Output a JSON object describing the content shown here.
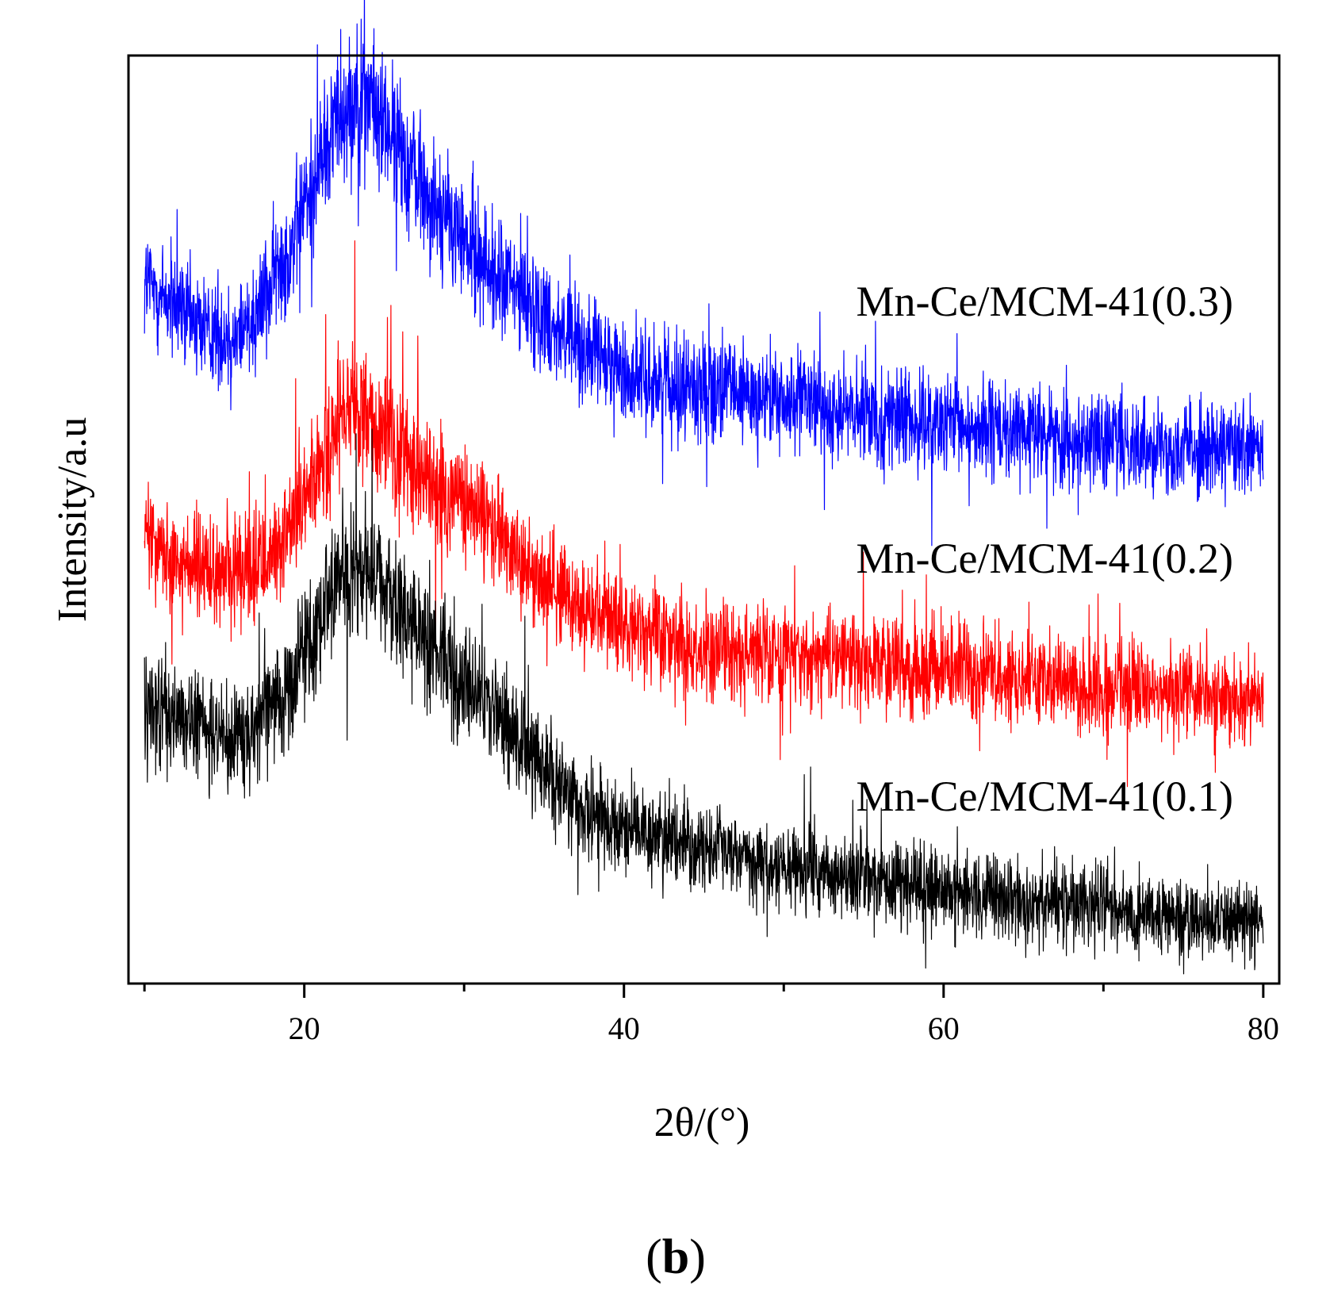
{
  "chart_data": {
    "type": "line",
    "title": "",
    "xlabel": "2θ/(°)",
    "ylabel": "Intensity/a.u",
    "xlim": [
      9,
      81
    ],
    "xticks": [
      20,
      40,
      60,
      80
    ],
    "x_minor_ticks": [
      10,
      30,
      50,
      70
    ],
    "yticks_shown": false,
    "panel_label": {
      "open": "(",
      "letter": "b",
      "close": ")"
    },
    "series": [
      {
        "name": "Mn-Ce/MCM-41(0.3)",
        "color": "#0000ff",
        "noise": 0.34,
        "x": [
          10,
          12,
          14,
          15.5,
          17,
          19,
          21,
          22,
          23,
          24,
          25,
          26,
          27,
          28,
          30,
          32,
          34,
          36,
          38,
          40,
          45,
          50,
          60,
          70,
          80
        ],
        "values": [
          2.6,
          2.45,
          2.35,
          2.3,
          2.45,
          2.75,
          3.2,
          3.45,
          3.55,
          3.52,
          3.4,
          3.25,
          3.15,
          3.0,
          2.8,
          2.62,
          2.5,
          2.35,
          2.22,
          2.12,
          2.05,
          1.98,
          1.85,
          1.78,
          1.72
        ]
      },
      {
        "name": "Mn-Ce/MCM-41(0.2)",
        "color": "#ff0000",
        "noise": 0.32,
        "x": [
          10,
          12,
          14,
          15.5,
          17,
          19,
          21,
          22,
          23,
          24,
          25,
          26,
          27,
          28,
          30,
          32,
          34,
          36,
          38,
          40,
          45,
          50,
          60,
          70,
          80
        ],
        "values": [
          1.3,
          1.18,
          1.1,
          1.08,
          1.12,
          1.3,
          1.62,
          1.82,
          1.92,
          1.9,
          1.8,
          1.72,
          1.62,
          1.55,
          1.45,
          1.32,
          1.15,
          0.98,
          0.9,
          0.82,
          0.72,
          0.68,
          0.6,
          0.52,
          0.45
        ]
      },
      {
        "name": "Mn-Ce/MCM-41(0.1)",
        "color": "#000000",
        "noise": 0.3,
        "x": [
          10,
          12,
          14,
          15.5,
          17,
          19,
          21,
          22,
          23,
          24,
          25,
          26,
          27,
          28,
          30,
          32,
          34,
          36,
          38,
          40,
          45,
          50,
          60,
          70,
          80
        ],
        "values": [
          0.48,
          0.35,
          0.28,
          0.25,
          0.32,
          0.52,
          0.88,
          1.05,
          1.12,
          1.1,
          1.0,
          0.92,
          0.82,
          0.72,
          0.55,
          0.4,
          0.2,
          0.0,
          -0.15,
          -0.22,
          -0.3,
          -0.4,
          -0.52,
          -0.62,
          -0.68
        ]
      }
    ],
    "ylim": [
      -1.0,
      3.75
    ]
  }
}
